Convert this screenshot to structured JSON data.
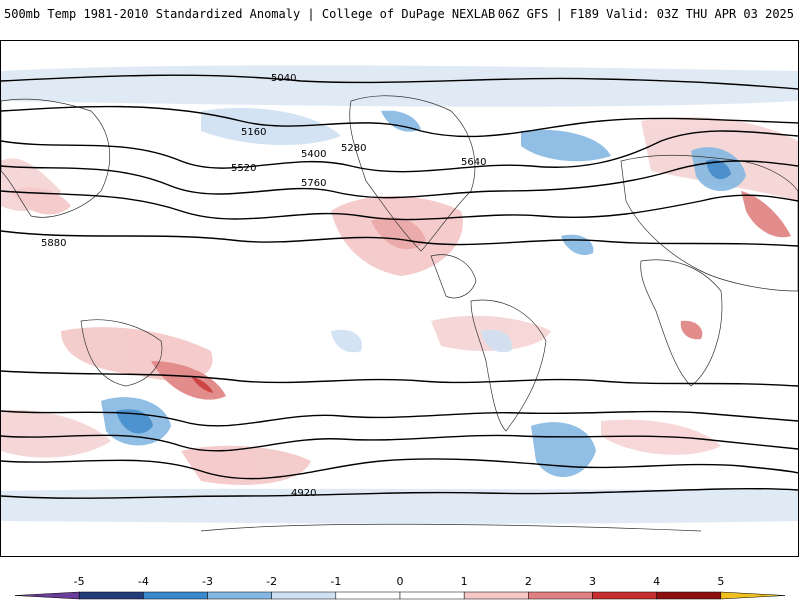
{
  "header": {
    "left": "500mb Temp 1981-2010 Standardized Anomaly | College of DuPage NEXLAB",
    "right": "06Z GFS | F189 Valid: 03Z THU APR 03 2025"
  },
  "colorbar": {
    "ticks": [
      "-5",
      "-4",
      "-3",
      "-2",
      "-1",
      "0",
      "1",
      "2",
      "3",
      "4",
      "5"
    ],
    "colors": [
      "#6a3d9a",
      "#243c7a",
      "#3a88cc",
      "#84b8e2",
      "#cfe0f2",
      "#ffffff",
      "#ffffff",
      "#f4c6c6",
      "#e08080",
      "#c83030",
      "#8c1010",
      "#f0c020"
    ]
  },
  "contours": {
    "labels": [
      "5040",
      "5160",
      "5280",
      "5400",
      "5520",
      "5640",
      "5760",
      "5880",
      "4920"
    ]
  }
}
